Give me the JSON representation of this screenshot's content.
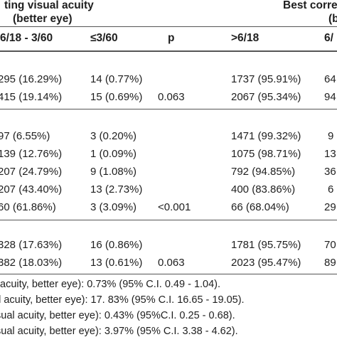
{
  "header": {
    "group1_line1": "ting visual acuity",
    "group1_line2": "(better eye)",
    "group2_line1": "Best corre",
    "group2_line2": "(b",
    "columns": [
      "6/18 - 3/60",
      "≤3/60",
      "p",
      ">6/18",
      "6/"
    ]
  },
  "sections": [
    {
      "rows": [
        [
          "295 (16.29%)",
          "14 (0.77%)",
          "",
          "1737 (95.91%)",
          "64"
        ],
        [
          "415 (19.14%)",
          "15 (0.69%)",
          "0.063",
          "2067 (95.34%)",
          "94"
        ]
      ]
    },
    {
      "rows": [
        [
          "97 (6.55%)",
          "3 (0.20%)",
          "",
          "1471 (99.32%)",
          "9"
        ],
        [
          "139 (12.76%)",
          "1 (0.09%)",
          "",
          "1075 (98.71%)",
          "13"
        ],
        [
          "207 (24.79%)",
          "9 (1.08%)",
          "",
          "792 (94.85%)",
          "36"
        ],
        [
          "207 (43.40%)",
          "13 (2.73%)",
          "",
          "400 (83.86%)",
          "6"
        ],
        [
          "60 (61.86%)",
          "3 (3.09%)",
          "<0.001",
          "66 (68.04%)",
          "29"
        ]
      ]
    },
    {
      "rows": [
        [
          "328 (17.63%)",
          "16 (0.86%)",
          "",
          "1781 (95.75%)",
          "70"
        ],
        [
          "382 (18.03%)",
          "13 (0.61%)",
          "0.063",
          "2023 (95.47%)",
          "89"
        ]
      ]
    }
  ],
  "footnotes": [
    "acuity, better eye): 0.73% (95% C.I. 0.49 - 1.04).",
    "al acuity, better eye): 17. 83% (95% C.I. 16.65 - 19.05).",
    "sual acuity, better eye): 0.43% (95%C.I. 0.25 - 0.68).",
    "sual acuity, better eye): 3.97% (95% C.I. 3.38 - 4.62)."
  ]
}
